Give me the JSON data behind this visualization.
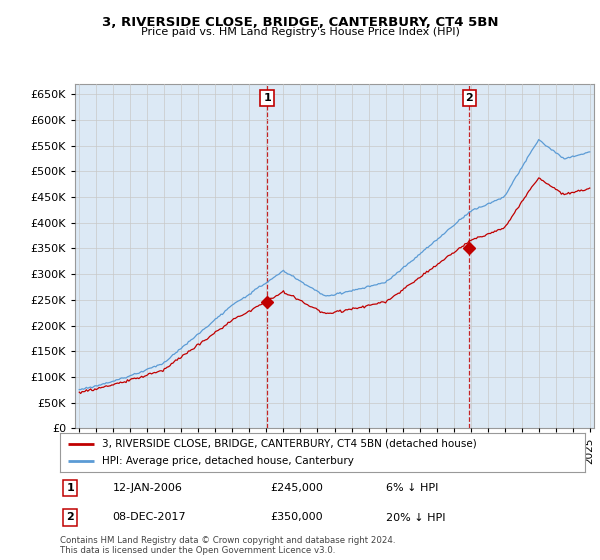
{
  "title": "3, RIVERSIDE CLOSE, BRIDGE, CANTERBURY, CT4 5BN",
  "subtitle": "Price paid vs. HM Land Registry's House Price Index (HPI)",
  "legend_line1": "3, RIVERSIDE CLOSE, BRIDGE, CANTERBURY, CT4 5BN (detached house)",
  "legend_line2": "HPI: Average price, detached house, Canterbury",
  "annotation1_label": "1",
  "annotation1_date": "12-JAN-2006",
  "annotation1_price": "£245,000",
  "annotation1_hpi": "6% ↓ HPI",
  "annotation2_label": "2",
  "annotation2_date": "08-DEC-2017",
  "annotation2_price": "£350,000",
  "annotation2_hpi": "20% ↓ HPI",
  "footer": "Contains HM Land Registry data © Crown copyright and database right 2024.\nThis data is licensed under the Open Government Licence v3.0.",
  "hpi_color": "#5b9bd5",
  "price_color": "#c00000",
  "vline_color": "#c00000",
  "grid_color": "#c8c8c8",
  "bg_color": "#ffffff",
  "plot_bg_color": "#dce9f5",
  "fill_color": "#dce9f5",
  "ylim": [
    0,
    670000
  ],
  "yticks": [
    0,
    50000,
    100000,
    150000,
    200000,
    250000,
    300000,
    350000,
    400000,
    450000,
    500000,
    550000,
    600000,
    650000
  ],
  "xlim_start": 1994.75,
  "xlim_end": 2025.25,
  "sale1_x": 2006.04,
  "sale1_y": 245000,
  "sale2_x": 2017.92,
  "sale2_y": 350000
}
